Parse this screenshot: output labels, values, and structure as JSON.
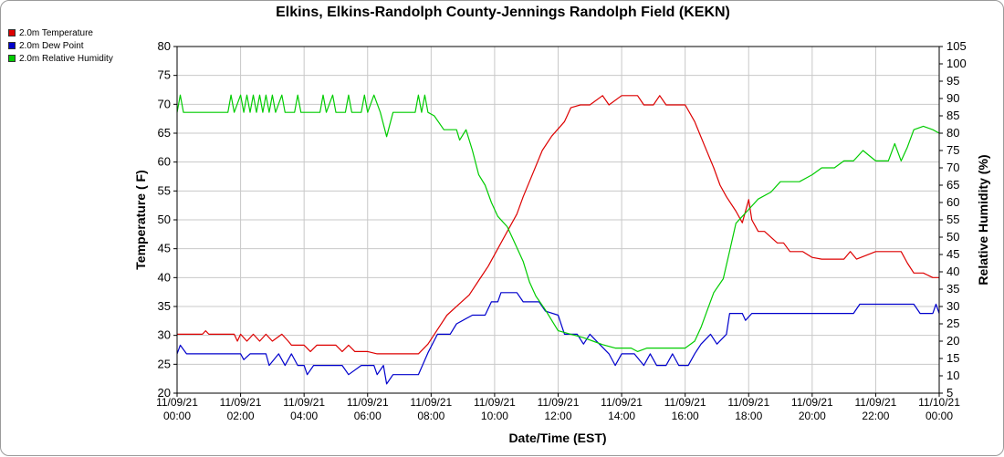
{
  "chart_data": {
    "type": "line",
    "title": "Elkins, Elkins-Randolph County-Jennings Randolph Field (KEKN)",
    "xlabel": "Date/Time (EST)",
    "ylabel_left": "Temperature ( F)",
    "ylabel_right": "Relative Humidity (%)",
    "ylim_left": [
      20,
      80
    ],
    "ylim_right": [
      5,
      105
    ],
    "xlim_hours": [
      0,
      24
    ],
    "grid": true,
    "legend_position": "top-left",
    "x_ticks": [
      {
        "h": 0,
        "date": "11/09/21",
        "time": "00:00"
      },
      {
        "h": 2,
        "date": "11/09/21",
        "time": "02:00"
      },
      {
        "h": 4,
        "date": "11/09/21",
        "time": "04:00"
      },
      {
        "h": 6,
        "date": "11/09/21",
        "time": "06:00"
      },
      {
        "h": 8,
        "date": "11/09/21",
        "time": "08:00"
      },
      {
        "h": 10,
        "date": "11/09/21",
        "time": "10:00"
      },
      {
        "h": 12,
        "date": "11/09/21",
        "time": "12:00"
      },
      {
        "h": 14,
        "date": "11/09/21",
        "time": "14:00"
      },
      {
        "h": 16,
        "date": "11/09/21",
        "time": "16:00"
      },
      {
        "h": 18,
        "date": "11/09/21",
        "time": "18:00"
      },
      {
        "h": 20,
        "date": "11/09/21",
        "time": "20:00"
      },
      {
        "h": 22,
        "date": "11/09/21",
        "time": "22:00"
      },
      {
        "h": 24,
        "date": "11/10/21",
        "time": "00:00"
      }
    ],
    "y_ticks_left": [
      20,
      25,
      30,
      35,
      40,
      45,
      50,
      55,
      60,
      65,
      70,
      75,
      80
    ],
    "y_ticks_right": [
      5,
      10,
      15,
      20,
      25,
      30,
      35,
      40,
      45,
      50,
      55,
      60,
      65,
      70,
      75,
      80,
      85,
      90,
      95,
      100,
      105
    ],
    "series": [
      {
        "name": "2.0m Temperature",
        "color": "#dd0000",
        "axis": "left",
        "points": [
          [
            0,
            30.2
          ],
          [
            0.8,
            30.2
          ],
          [
            0.9,
            30.8
          ],
          [
            1,
            30.2
          ],
          [
            1.8,
            30.2
          ],
          [
            1.9,
            29
          ],
          [
            2,
            30.2
          ],
          [
            2.2,
            29
          ],
          [
            2.4,
            30.2
          ],
          [
            2.6,
            29
          ],
          [
            2.8,
            30.2
          ],
          [
            3,
            29
          ],
          [
            3.3,
            30.2
          ],
          [
            3.5,
            29
          ],
          [
            3.6,
            28.3
          ],
          [
            4,
            28.3
          ],
          [
            4.2,
            27.2
          ],
          [
            4.4,
            28.3
          ],
          [
            5,
            28.3
          ],
          [
            5.2,
            27.2
          ],
          [
            5.4,
            28.3
          ],
          [
            5.6,
            27.2
          ],
          [
            6,
            27.2
          ],
          [
            6.3,
            26.8
          ],
          [
            7,
            26.8
          ],
          [
            7.6,
            26.8
          ],
          [
            7.9,
            28.5
          ],
          [
            8.2,
            31
          ],
          [
            8.5,
            33.5
          ],
          [
            8.9,
            35.5
          ],
          [
            9.2,
            37
          ],
          [
            9.5,
            39.5
          ],
          [
            9.8,
            42
          ],
          [
            10.1,
            45
          ],
          [
            10.4,
            48
          ],
          [
            10.7,
            51
          ],
          [
            10.9,
            54
          ],
          [
            11.2,
            58
          ],
          [
            11.5,
            62
          ],
          [
            11.8,
            64.5
          ],
          [
            12.2,
            67
          ],
          [
            12.4,
            69.4
          ],
          [
            12.7,
            69.9
          ],
          [
            13,
            69.9
          ],
          [
            13.4,
            71.5
          ],
          [
            13.6,
            69.9
          ],
          [
            14,
            71.5
          ],
          [
            14.5,
            71.5
          ],
          [
            14.7,
            69.9
          ],
          [
            15,
            69.9
          ],
          [
            15.2,
            71.5
          ],
          [
            15.4,
            69.9
          ],
          [
            16,
            69.9
          ],
          [
            16.3,
            67
          ],
          [
            16.6,
            63
          ],
          [
            16.9,
            59
          ],
          [
            17.1,
            56
          ],
          [
            17.3,
            54
          ],
          [
            17.6,
            51.5
          ],
          [
            17.8,
            49.5
          ],
          [
            18,
            53.5
          ],
          [
            18.1,
            50
          ],
          [
            18.3,
            48
          ],
          [
            18.5,
            48
          ],
          [
            18.9,
            46
          ],
          [
            19.1,
            46
          ],
          [
            19.3,
            44.5
          ],
          [
            19.7,
            44.5
          ],
          [
            20,
            43.5
          ],
          [
            20.3,
            43.2
          ],
          [
            20.6,
            43.2
          ],
          [
            21,
            43.2
          ],
          [
            21.2,
            44.5
          ],
          [
            21.4,
            43.2
          ],
          [
            22,
            44.5
          ],
          [
            22.8,
            44.5
          ],
          [
            23,
            42.5
          ],
          [
            23.2,
            40.8
          ],
          [
            23.5,
            40.8
          ],
          [
            23.8,
            40
          ],
          [
            24,
            40
          ]
        ]
      },
      {
        "name": "2.0m Dew Point",
        "color": "#0000cc",
        "axis": "left",
        "points": [
          [
            0,
            26.8
          ],
          [
            0.1,
            28.3
          ],
          [
            0.3,
            26.8
          ],
          [
            2,
            26.8
          ],
          [
            2.1,
            25.8
          ],
          [
            2.3,
            26.8
          ],
          [
            2.8,
            26.8
          ],
          [
            2.9,
            24.8
          ],
          [
            3.2,
            26.8
          ],
          [
            3.4,
            24.8
          ],
          [
            3.6,
            26.8
          ],
          [
            3.8,
            24.8
          ],
          [
            4,
            24.8
          ],
          [
            4.1,
            23.2
          ],
          [
            4.3,
            24.8
          ],
          [
            5.2,
            24.8
          ],
          [
            5.4,
            23.2
          ],
          [
            5.8,
            24.8
          ],
          [
            6.2,
            24.8
          ],
          [
            6.3,
            23.2
          ],
          [
            6.5,
            24.8
          ],
          [
            6.6,
            21.6
          ],
          [
            6.8,
            23.2
          ],
          [
            7.6,
            23.2
          ],
          [
            7.9,
            27
          ],
          [
            8.2,
            30.2
          ],
          [
            8.6,
            30.2
          ],
          [
            8.8,
            32
          ],
          [
            9.3,
            33.5
          ],
          [
            9.7,
            33.5
          ],
          [
            9.9,
            35.8
          ],
          [
            10.1,
            35.8
          ],
          [
            10.2,
            37.4
          ],
          [
            10.7,
            37.4
          ],
          [
            10.9,
            35.8
          ],
          [
            11.4,
            35.8
          ],
          [
            11.6,
            34.2
          ],
          [
            12,
            33.5
          ],
          [
            12.2,
            30.2
          ],
          [
            12.6,
            30.2
          ],
          [
            12.8,
            28.5
          ],
          [
            13,
            30.2
          ],
          [
            13.3,
            28.5
          ],
          [
            13.6,
            26.8
          ],
          [
            13.8,
            24.8
          ],
          [
            14,
            26.8
          ],
          [
            14.4,
            26.8
          ],
          [
            14.7,
            24.8
          ],
          [
            14.9,
            26.8
          ],
          [
            15.1,
            24.8
          ],
          [
            15.4,
            24.8
          ],
          [
            15.6,
            26.8
          ],
          [
            15.8,
            24.8
          ],
          [
            16.1,
            24.8
          ],
          [
            16.3,
            26.8
          ],
          [
            16.5,
            28.5
          ],
          [
            16.8,
            30.2
          ],
          [
            17,
            28.5
          ],
          [
            17.3,
            30.2
          ],
          [
            17.4,
            33.8
          ],
          [
            17.8,
            33.8
          ],
          [
            17.9,
            32.6
          ],
          [
            18.1,
            33.8
          ],
          [
            18.6,
            33.8
          ],
          [
            19.5,
            33.8
          ],
          [
            20.5,
            33.8
          ],
          [
            21.3,
            33.8
          ],
          [
            21.5,
            35.4
          ],
          [
            22.4,
            35.4
          ],
          [
            22.6,
            35.4
          ],
          [
            23.2,
            35.4
          ],
          [
            23.4,
            33.8
          ],
          [
            23.8,
            33.8
          ],
          [
            23.9,
            35.4
          ],
          [
            24,
            33.8
          ]
        ]
      },
      {
        "name": "2.0m Relative Humidity",
        "color": "#00cc00",
        "axis": "right",
        "points": [
          [
            0,
            86
          ],
          [
            0.1,
            91
          ],
          [
            0.2,
            86
          ],
          [
            1.6,
            86
          ],
          [
            1.7,
            91
          ],
          [
            1.8,
            86
          ],
          [
            2,
            91
          ],
          [
            2.1,
            86
          ],
          [
            2.2,
            91
          ],
          [
            2.3,
            86
          ],
          [
            2.4,
            91
          ],
          [
            2.5,
            86
          ],
          [
            2.6,
            91
          ],
          [
            2.7,
            86
          ],
          [
            2.8,
            91
          ],
          [
            2.9,
            86
          ],
          [
            3,
            91
          ],
          [
            3.1,
            86
          ],
          [
            3.3,
            91
          ],
          [
            3.4,
            86
          ],
          [
            3.7,
            86
          ],
          [
            3.8,
            91
          ],
          [
            3.9,
            86
          ],
          [
            4.5,
            86
          ],
          [
            4.6,
            91
          ],
          [
            4.7,
            86
          ],
          [
            4.9,
            91
          ],
          [
            5,
            86
          ],
          [
            5.3,
            86
          ],
          [
            5.4,
            91
          ],
          [
            5.5,
            86
          ],
          [
            5.8,
            86
          ],
          [
            5.9,
            91
          ],
          [
            6,
            86
          ],
          [
            6.2,
            91
          ],
          [
            6.4,
            86
          ],
          [
            6.6,
            79
          ],
          [
            6.8,
            86
          ],
          [
            7.2,
            86
          ],
          [
            7.4,
            86
          ],
          [
            7.5,
            86
          ],
          [
            7.6,
            91
          ],
          [
            7.7,
            86
          ],
          [
            7.8,
            91
          ],
          [
            7.9,
            86
          ],
          [
            8.1,
            85
          ],
          [
            8.4,
            81
          ],
          [
            8.8,
            81
          ],
          [
            8.9,
            78
          ],
          [
            9.1,
            81
          ],
          [
            9.3,
            75
          ],
          [
            9.5,
            68
          ],
          [
            9.7,
            65
          ],
          [
            9.9,
            60
          ],
          [
            10.1,
            56
          ],
          [
            10.4,
            53
          ],
          [
            10.6,
            49
          ],
          [
            10.9,
            43
          ],
          [
            11.1,
            37
          ],
          [
            11.3,
            33
          ],
          [
            11.6,
            29
          ],
          [
            11.8,
            26
          ],
          [
            12,
            23
          ],
          [
            12.4,
            22
          ],
          [
            12.8,
            21
          ],
          [
            13.1,
            20
          ],
          [
            13.4,
            19
          ],
          [
            13.8,
            18
          ],
          [
            14.3,
            18
          ],
          [
            14.5,
            17
          ],
          [
            14.8,
            18
          ],
          [
            15.3,
            18
          ],
          [
            16,
            18
          ],
          [
            16.3,
            20
          ],
          [
            16.5,
            24
          ],
          [
            16.7,
            29
          ],
          [
            16.9,
            34
          ],
          [
            17.2,
            38
          ],
          [
            17.4,
            46
          ],
          [
            17.6,
            54
          ],
          [
            17.8,
            56
          ],
          [
            18,
            58
          ],
          [
            18.3,
            61
          ],
          [
            18.7,
            63
          ],
          [
            19,
            66
          ],
          [
            19.3,
            66
          ],
          [
            19.6,
            66
          ],
          [
            20,
            68
          ],
          [
            20.3,
            70
          ],
          [
            20.7,
            70
          ],
          [
            21,
            72
          ],
          [
            21.3,
            72
          ],
          [
            21.6,
            75
          ],
          [
            22,
            72
          ],
          [
            22.4,
            72
          ],
          [
            22.6,
            77
          ],
          [
            22.8,
            72
          ],
          [
            23,
            76
          ],
          [
            23.2,
            81
          ],
          [
            23.5,
            82
          ],
          [
            23.8,
            81
          ],
          [
            24,
            80
          ]
        ]
      }
    ]
  }
}
